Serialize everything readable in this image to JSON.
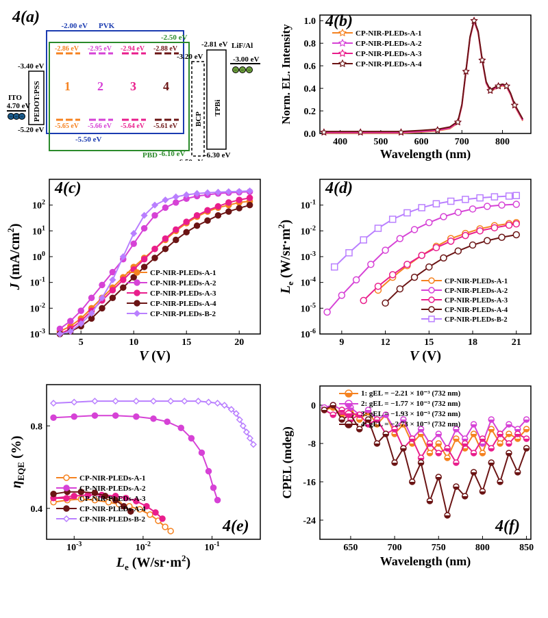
{
  "panels": {
    "a": {
      "label": "4(a)",
      "layers": {
        "ITO": {
          "top": "-4.70 eV",
          "color": "#000"
        },
        "PEDOT": {
          "name": "PEDOT:PSS",
          "top": "-3.40 eV",
          "bottom": "-5.20 eV",
          "color": "#000"
        },
        "PVK": {
          "name": "PVK",
          "top": "-2.00 eV",
          "bottom": "-5.50 eV",
          "color": "#1a3bb0"
        },
        "PBD": {
          "name": "PBD",
          "top": "-2.50 eV",
          "bottom": "-6.10 eV",
          "color": "#2a8a2a"
        },
        "BCP": {
          "top": "-3.20 eV",
          "bottom": "-6.50 eV",
          "color": "#000"
        },
        "TPBi": {
          "top": "-2.81 eV",
          "bottom": "-6.30 eV",
          "color": "#000"
        },
        "LiFAl": {
          "name": "LiF/Al",
          "top": "-3.00 eV",
          "color": "#000"
        }
      },
      "emitters": [
        {
          "id": "1",
          "homo": "-5.65 eV",
          "lumo": "-2.86 eV",
          "color": "#f58220"
        },
        {
          "id": "2",
          "homo": "-5.66 eV",
          "lumo": "-2.95 eV",
          "color": "#d642d6"
        },
        {
          "id": "3",
          "homo": "-5.64 eV",
          "lumo": "-2.94 eV",
          "color": "#e91e8c"
        },
        {
          "id": "4",
          "homo": "-5.61 eV",
          "lumo": "-2.88 eV",
          "color": "#6b1414"
        }
      ]
    },
    "b": {
      "label": "4(b)",
      "ylabel": "Norm. EL. Intensity",
      "xlabel": "Wavelength (nm)",
      "xlim": [
        350,
        870
      ],
      "ylim": [
        0,
        1.05
      ],
      "xticks": [
        400,
        500,
        600,
        700,
        800
      ],
      "yticks": [
        0.0,
        0.2,
        0.4,
        0.6,
        0.8,
        1.0
      ],
      "series": [
        {
          "name": "CP-NIR-PLEDs-A-1",
          "color": "#f58220",
          "marker": "star"
        },
        {
          "name": "CP-NIR-PLEDs-A-2",
          "color": "#d642d6",
          "marker": "star"
        },
        {
          "name": "CP-NIR-PLEDs-A-3",
          "color": "#e91e8c",
          "marker": "star"
        },
        {
          "name": "CP-NIR-PLEDs-A-4",
          "color": "#6b1414",
          "marker": "star"
        }
      ],
      "curve_x": [
        360,
        400,
        450,
        500,
        550,
        600,
        640,
        670,
        690,
        700,
        710,
        720,
        730,
        740,
        750,
        760,
        770,
        780,
        790,
        800,
        810,
        820,
        830,
        850
      ],
      "curve_y": [
        0.01,
        0.01,
        0.01,
        0.01,
        0.01,
        0.02,
        0.03,
        0.05,
        0.1,
        0.25,
        0.55,
        0.85,
        1.0,
        0.9,
        0.65,
        0.45,
        0.38,
        0.4,
        0.42,
        0.43,
        0.42,
        0.35,
        0.25,
        0.12
      ]
    },
    "c": {
      "label": "4(c)",
      "ylabel": "J (mA/cm²)",
      "xlabel": "V (V)",
      "xlim": [
        2,
        22
      ],
      "ylim_log": [
        -3,
        3
      ],
      "xticks": [
        5,
        10,
        15,
        20
      ],
      "yticks_log": [
        -3,
        -2,
        -1,
        0,
        1,
        2
      ],
      "series": [
        {
          "name": "CP-NIR-PLEDs-A-1",
          "color": "#f58220",
          "marker": "circle-filled",
          "x": [
            3,
            4,
            5,
            6,
            7,
            8,
            9,
            10,
            11,
            12,
            13,
            14,
            15,
            16,
            17,
            18,
            19,
            20,
            21
          ],
          "ylog": [
            -2.9,
            -2.7,
            -2.4,
            -2.0,
            -1.6,
            -1.2,
            -0.8,
            -0.4,
            -0.05,
            0.3,
            0.65,
            1.0,
            1.3,
            1.55,
            1.75,
            1.9,
            2.0,
            2.1,
            2.15
          ]
        },
        {
          "name": "CP-NIR-PLEDs-A-2",
          "color": "#d642d6",
          "marker": "circle-filled",
          "x": [
            3,
            4,
            5,
            6,
            7,
            8,
            9,
            10,
            11,
            12,
            13,
            14,
            15,
            16,
            17,
            18,
            19,
            20,
            21
          ],
          "ylog": [
            -2.8,
            -2.5,
            -2.1,
            -1.6,
            -1.1,
            -0.6,
            -0.1,
            0.5,
            1.1,
            1.6,
            1.9,
            2.1,
            2.25,
            2.35,
            2.4,
            2.45,
            2.48,
            2.5,
            2.52
          ]
        },
        {
          "name": "CP-NIR-PLEDs-A-3",
          "color": "#e91e8c",
          "marker": "circle-filled",
          "x": [
            3,
            4,
            5,
            6,
            7,
            8,
            9,
            10,
            11,
            12,
            13,
            14,
            15,
            16,
            17,
            18,
            19,
            20,
            21
          ],
          "ylog": [
            -3.0,
            -2.8,
            -2.5,
            -2.1,
            -1.7,
            -1.3,
            -0.9,
            -0.5,
            -0.1,
            0.3,
            0.7,
            1.05,
            1.35,
            1.6,
            1.8,
            1.95,
            2.1,
            2.2,
            2.28
          ]
        },
        {
          "name": "CP-NIR-PLEDs-A-4",
          "color": "#6b1414",
          "marker": "circle-filled",
          "x": [
            3,
            4,
            5,
            6,
            7,
            8,
            9,
            10,
            11,
            12,
            13,
            14,
            15,
            16,
            17,
            18,
            19,
            20,
            21
          ],
          "ylog": [
            -3.0,
            -2.9,
            -2.7,
            -2.4,
            -2.0,
            -1.6,
            -1.2,
            -0.8,
            -0.4,
            -0.05,
            0.3,
            0.65,
            0.95,
            1.2,
            1.4,
            1.6,
            1.75,
            1.88,
            2.0
          ]
        },
        {
          "name": "CP-NIR-PLEDs-B-2",
          "color": "#b97fff",
          "marker": "diamond-filled",
          "x": [
            3,
            4,
            5,
            6,
            7,
            8,
            9,
            10,
            11,
            12,
            13,
            14,
            15,
            16,
            17,
            18,
            19,
            20,
            21
          ],
          "ylog": [
            -3.0,
            -2.9,
            -2.6,
            -2.2,
            -1.6,
            -0.9,
            0.0,
            0.9,
            1.6,
            2.0,
            2.2,
            2.32,
            2.4,
            2.45,
            2.48,
            2.5,
            2.52,
            2.53,
            2.55
          ]
        }
      ]
    },
    "d": {
      "label": "4(d)",
      "ylabel": "Lₑ (W/sr·m²)",
      "xlabel": "V (V)",
      "xlim": [
        7.5,
        22
      ],
      "ylim_log": [
        -6,
        0
      ],
      "xticks": [
        9,
        12,
        15,
        18,
        21
      ],
      "yticks_log": [
        -6,
        -5,
        -4,
        -3,
        -2,
        -1
      ],
      "series": [
        {
          "name": "CP-NIR-PLEDs-A-1",
          "color": "#f58220",
          "marker": "circle-open",
          "x": [
            11.5,
            12.5,
            13.5,
            14.5,
            15.5,
            16.5,
            17.5,
            18.5,
            19.5,
            20.5,
            21
          ],
          "ylog": [
            -4.3,
            -3.8,
            -3.35,
            -2.95,
            -2.6,
            -2.3,
            -2.1,
            -1.92,
            -1.8,
            -1.72,
            -1.68
          ]
        },
        {
          "name": "CP-NIR-PLEDs-A-2",
          "color": "#d642d6",
          "marker": "circle-open",
          "x": [
            8,
            9,
            10,
            11,
            12,
            13,
            14,
            15,
            16,
            17,
            18,
            19,
            20,
            21
          ],
          "ylog": [
            -5.15,
            -4.5,
            -3.9,
            -3.3,
            -2.75,
            -2.3,
            -1.95,
            -1.68,
            -1.45,
            -1.28,
            -1.15,
            -1.05,
            -1.0,
            -0.97
          ]
        },
        {
          "name": "CP-NIR-PLEDs-A-3",
          "color": "#e91e8c",
          "marker": "circle-open",
          "x": [
            10.5,
            11.5,
            12.5,
            13.5,
            14.5,
            15.5,
            16.5,
            17.5,
            18.5,
            19.5,
            20.5,
            21
          ],
          "ylog": [
            -4.7,
            -4.15,
            -3.7,
            -3.3,
            -2.95,
            -2.65,
            -2.4,
            -2.18,
            -2.0,
            -1.88,
            -1.78,
            -1.73
          ]
        },
        {
          "name": "CP-NIR-PLEDs-A-4",
          "color": "#6b1414",
          "marker": "circle-open",
          "x": [
            12,
            13,
            14,
            15,
            16,
            17,
            18,
            19,
            20,
            21
          ],
          "ylog": [
            -4.8,
            -4.25,
            -3.8,
            -3.4,
            -3.05,
            -2.78,
            -2.55,
            -2.38,
            -2.25,
            -2.15
          ]
        },
        {
          "name": "CP-NIR-PLEDs-B-2",
          "color": "#b97fff",
          "marker": "square-open",
          "x": [
            8.5,
            9.5,
            10.5,
            11.5,
            12.5,
            13.5,
            14.5,
            15.5,
            16.5,
            17.5,
            18.5,
            19.5,
            20.5,
            21
          ],
          "ylog": [
            -3.4,
            -2.85,
            -2.35,
            -1.9,
            -1.55,
            -1.3,
            -1.1,
            -0.95,
            -0.85,
            -0.78,
            -0.72,
            -0.68,
            -0.65,
            -0.63
          ]
        }
      ]
    },
    "e": {
      "label": "4(e)",
      "ylabel": "ηEQE (%)",
      "xlabel": "Lₑ (W/sr·m²)",
      "xlim_log": [
        -3.4,
        -0.3
      ],
      "ylim": [
        0.25,
        1.0
      ],
      "xticks_log": [
        -3,
        -2,
        -1
      ],
      "yticks": [
        0.4,
        0.8
      ],
      "series": [
        {
          "name": "CP-NIR-PLEDs-A-1",
          "color": "#f58220",
          "marker": "circle-open",
          "xlog": [
            -3.3,
            -3.1,
            -2.9,
            -2.7,
            -2.5,
            -2.35,
            -2.2,
            -2.05,
            -1.9,
            -1.78,
            -1.68,
            -1.6
          ],
          "y": [
            0.43,
            0.44,
            0.445,
            0.44,
            0.43,
            0.42,
            0.41,
            0.395,
            0.37,
            0.34,
            0.31,
            0.29
          ]
        },
        {
          "name": "CP-NIR-PLEDs-A-2",
          "color": "#d642d6",
          "marker": "circle-filled",
          "xlog": [
            -3.3,
            -3.0,
            -2.7,
            -2.4,
            -2.1,
            -1.85,
            -1.65,
            -1.45,
            -1.3,
            -1.15,
            -1.05,
            -0.98,
            -0.92
          ],
          "y": [
            0.84,
            0.845,
            0.85,
            0.85,
            0.845,
            0.835,
            0.82,
            0.79,
            0.74,
            0.67,
            0.58,
            0.5,
            0.44
          ]
        },
        {
          "name": "CP-NIR-PLEDs-A-3",
          "color": "#e91e8c",
          "marker": "circle-filled",
          "xlog": [
            -3.3,
            -3.0,
            -2.8,
            -2.6,
            -2.4,
            -2.25,
            -2.1,
            -1.95,
            -1.82,
            -1.72
          ],
          "y": [
            0.45,
            0.46,
            0.465,
            0.465,
            0.46,
            0.45,
            0.435,
            0.41,
            0.38,
            0.35
          ]
        },
        {
          "name": "CP-NIR-PLEDs-A-4",
          "color": "#6b1414",
          "marker": "circle-filled",
          "xlog": [
            -3.3,
            -3.1,
            -2.9,
            -2.7,
            -2.55,
            -2.4,
            -2.28,
            -2.18
          ],
          "y": [
            0.47,
            0.48,
            0.48,
            0.475,
            0.46,
            0.44,
            0.41,
            0.385
          ]
        },
        {
          "name": "CP-NIR-PLEDs-B-2",
          "color": "#b97fff",
          "marker": "diamond-open",
          "xlog": [
            -3.3,
            -3.0,
            -2.7,
            -2.4,
            -2.1,
            -1.85,
            -1.6,
            -1.4,
            -1.2,
            -1.05,
            -0.92,
            -0.82,
            -0.72,
            -0.65,
            -0.6,
            -0.55,
            -0.5,
            -0.45,
            -0.4
          ],
          "y": [
            0.91,
            0.915,
            0.92,
            0.92,
            0.92,
            0.92,
            0.92,
            0.92,
            0.92,
            0.915,
            0.91,
            0.9,
            0.88,
            0.86,
            0.83,
            0.8,
            0.77,
            0.74,
            0.71
          ]
        }
      ]
    },
    "f": {
      "label": "4(f)",
      "ylabel": "CPEL (mdeg)",
      "xlabel": "Wavelength (nm)",
      "xlim": [
        615,
        855
      ],
      "ylim": [
        -28,
        4
      ],
      "xticks": [
        650,
        700,
        750,
        800,
        850
      ],
      "yticks": [
        -24,
        -16,
        -8,
        0
      ],
      "annotations": [
        {
          "text": "1: gEL = −2.21 × 10⁻³ (732 nm)",
          "color": "#f58220"
        },
        {
          "text": "2: gEL = −1.77 × 10⁻³ (732 nm)",
          "color": "#d642d6"
        },
        {
          "text": "3: gEL = −1.93 × 10⁻³ (732 nm)",
          "color": "#e91e8c"
        },
        {
          "text": "4: gEL = −2.73 × 10⁻³ (732 nm)",
          "color": "#6b1414"
        }
      ],
      "series": [
        {
          "color": "#f58220",
          "x": [
            620,
            630,
            640,
            650,
            660,
            670,
            680,
            690,
            700,
            710,
            720,
            730,
            740,
            750,
            760,
            770,
            780,
            790,
            800,
            810,
            820,
            830,
            840,
            850
          ],
          "y": [
            -1,
            -0.5,
            -2,
            -1,
            -3,
            -1.5,
            -4,
            -2,
            -6,
            -4,
            -8,
            -6,
            -10,
            -8,
            -11,
            -7,
            -9,
            -6,
            -10,
            -5,
            -8,
            -6,
            -7,
            -5
          ]
        },
        {
          "color": "#d642d6",
          "x": [
            620,
            630,
            640,
            650,
            660,
            670,
            680,
            690,
            700,
            710,
            720,
            730,
            740,
            750,
            760,
            770,
            780,
            790,
            800,
            810,
            820,
            830,
            840,
            850
          ],
          "y": [
            -0.5,
            0,
            -1,
            -0.5,
            -2,
            -1,
            -3,
            -2,
            -5,
            -3,
            -7,
            -5,
            -8,
            -6,
            -9,
            -5,
            -7,
            -4,
            -8,
            -3,
            -6,
            -4,
            -5,
            -3
          ]
        },
        {
          "color": "#e91e8c",
          "x": [
            620,
            630,
            640,
            650,
            660,
            670,
            680,
            690,
            700,
            710,
            720,
            730,
            740,
            750,
            760,
            770,
            780,
            790,
            800,
            810,
            820,
            830,
            840,
            850
          ],
          "y": [
            -1,
            -2,
            -1,
            -3,
            -2,
            -4,
            -3,
            -6,
            -5,
            -9,
            -7,
            -11,
            -8,
            -10,
            -9,
            -12,
            -8,
            -10,
            -7,
            -9,
            -6,
            -8,
            -6,
            -7
          ]
        },
        {
          "color": "#6b1414",
          "x": [
            620,
            630,
            640,
            650,
            660,
            670,
            680,
            690,
            700,
            710,
            720,
            730,
            740,
            750,
            760,
            770,
            780,
            790,
            800,
            810,
            820,
            830,
            840,
            850
          ],
          "y": [
            -1,
            0,
            -3,
            -2,
            -5,
            -3,
            -8,
            -6,
            -12,
            -9,
            -16,
            -12,
            -20,
            -15,
            -23,
            -17,
            -19,
            -14,
            -18,
            -12,
            -16,
            -10,
            -14,
            -9
          ]
        }
      ]
    }
  }
}
